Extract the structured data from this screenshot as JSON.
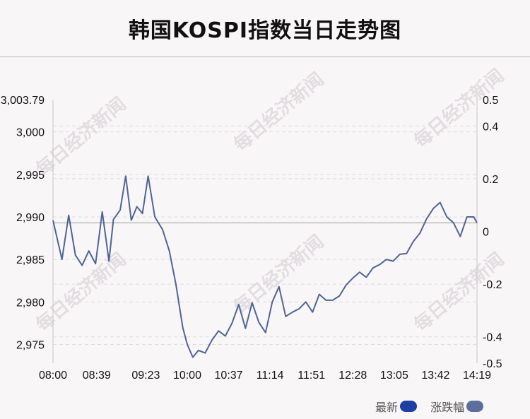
{
  "title": "韩国KOSPI指数当日走势图",
  "watermark": "每日经济新闻",
  "legend": [
    {
      "label": "最新",
      "color": "#1b3fa7"
    },
    {
      "label": "涨跌幅",
      "color": "#5b6f9e"
    }
  ],
  "colors": {
    "line": "#4f6496",
    "baseline": "#bdbdbd",
    "grid": "#dcdcdc",
    "axis": "#c8c8c8"
  },
  "chart_data": {
    "type": "line",
    "x_tick_labels": [
      "08:00",
      "08:39",
      "09:23",
      "10:00",
      "10:37",
      "11:14",
      "11:51",
      "12:28",
      "13:05",
      "13:42",
      "14:19"
    ],
    "y_left_tick_labels": [
      "3,003.79",
      "3,000",
      "2,995",
      "2,990",
      "2,985",
      "2,980",
      "2,975"
    ],
    "y_left_values": [
      3003.79,
      3000,
      2995,
      2990,
      2985,
      2980,
      2975
    ],
    "y_right_tick_labels": [
      "0.5",
      "0.4",
      "0.2",
      "0",
      "-0.2",
      "-0.4",
      "-0.5"
    ],
    "y_right_values": [
      0.5,
      0.4,
      0.2,
      0,
      -0.2,
      -0.4,
      -0.5
    ],
    "ylim_left": [
      2972.8,
      3003.79
    ],
    "ylim_right": [
      -0.5,
      0.5
    ],
    "baseline_value": 2989.3,
    "grid": "horizontal dashed",
    "series": [
      {
        "name": "最新",
        "x": [
          "08:00",
          "08:08",
          "08:14",
          "08:20",
          "08:26",
          "08:32",
          "08:38",
          "08:44",
          "08:50",
          "08:54",
          "09:00",
          "09:05",
          "09:10",
          "09:15",
          "09:20",
          "09:25",
          "09:31",
          "09:38",
          "09:44",
          "09:50",
          "09:56",
          "10:00",
          "10:05",
          "10:10",
          "10:16",
          "10:22",
          "10:28",
          "10:34",
          "10:40",
          "10:46",
          "10:52",
          "10:58",
          "11:04",
          "11:10",
          "11:16",
          "11:22",
          "11:28",
          "11:34",
          "11:40",
          "11:46",
          "11:52",
          "11:58",
          "12:04",
          "12:10",
          "12:16",
          "12:22",
          "12:28",
          "12:34",
          "12:40",
          "12:46",
          "12:52",
          "12:58",
          "13:04",
          "13:10",
          "13:16",
          "13:22",
          "13:28",
          "13:34",
          "13:40",
          "13:46",
          "13:52",
          "13:58",
          "14:04",
          "14:10",
          "14:16",
          "14:19"
        ],
        "values": [
          2989.6,
          2985.0,
          2990.2,
          2985.5,
          2984.3,
          2986.0,
          2984.5,
          2990.6,
          2984.8,
          2989.7,
          2990.8,
          2994.8,
          2989.6,
          2991.2,
          2990.4,
          2994.8,
          2990.0,
          2988.5,
          2986.0,
          2982.0,
          2977.0,
          2975.0,
          2973.5,
          2974.3,
          2974.0,
          2975.5,
          2976.6,
          2976.0,
          2977.5,
          2979.7,
          2976.9,
          2979.9,
          2977.6,
          2976.4,
          2980.0,
          2981.8,
          2978.3,
          2978.8,
          2979.2,
          2980.0,
          2978.8,
          2980.9,
          2980.2,
          2980.2,
          2980.7,
          2982.0,
          2982.8,
          2983.5,
          2982.9,
          2984.0,
          2984.4,
          2985.0,
          2984.8,
          2985.6,
          2985.7,
          2987.1,
          2988.1,
          2989.8,
          2991.0,
          2991.7,
          2990.0,
          2989.3,
          2987.7,
          2990.0,
          2990.0,
          2989.3
        ]
      }
    ],
    "xlabel": "",
    "ylabel": ""
  }
}
